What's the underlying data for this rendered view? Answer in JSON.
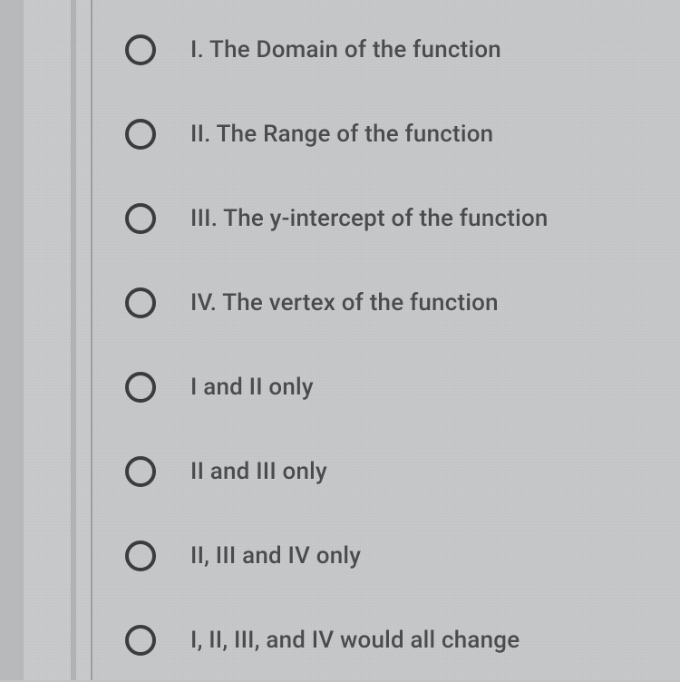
{
  "options": [
    {
      "label": "I. The Domain of the function"
    },
    {
      "label": "II. The Range of the function"
    },
    {
      "label": "III. The y-intercept of the function"
    },
    {
      "label": "IV. The vertex of the function"
    },
    {
      "label": "I and II only"
    },
    {
      "label": "II and III only"
    },
    {
      "label": "II, III and IV only"
    },
    {
      "label": "I, II, III, and IV would all change"
    }
  ],
  "colors": {
    "background": "#c7c8c9",
    "radio_border": "#3a3c3e",
    "text": "#4a4c4e"
  }
}
